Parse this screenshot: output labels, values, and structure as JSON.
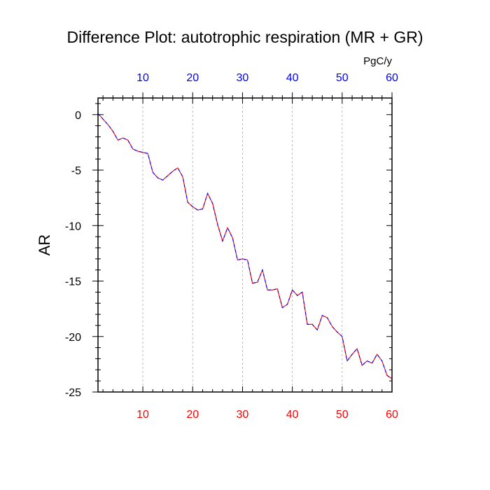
{
  "title": "Difference Plot: autotrophic respiration (MR + GR)",
  "unit_label": "PgC/y",
  "colors": {
    "top_ticks": "#0000ff",
    "bottom_ticks": "#ff0000",
    "line_a": "#ff0000",
    "line_b": "#0000ff",
    "gridline": "#aaaaaa",
    "axis": "#000000"
  },
  "chart_data": {
    "type": "line",
    "title": "Difference Plot: autotrophic respiration (MR + GR)",
    "ylabel": "AR",
    "xlabel": "",
    "xlim": [
      1,
      60
    ],
    "ylim": [
      -25,
      1.5
    ],
    "grid": "vertical dashed at major x ticks",
    "x_ticks": [
      10,
      20,
      30,
      40,
      50,
      60
    ],
    "y_ticks": [
      0,
      -5,
      -10,
      -15,
      -20,
      -25
    ],
    "x": [
      1,
      2,
      3,
      4,
      5,
      6,
      7,
      8,
      9,
      10,
      11,
      12,
      13,
      14,
      15,
      16,
      17,
      18,
      19,
      20,
      21,
      22,
      23,
      24,
      25,
      26,
      27,
      28,
      29,
      30,
      31,
      32,
      33,
      34,
      35,
      36,
      37,
      38,
      39,
      40,
      41,
      42,
      43,
      44,
      45,
      46,
      47,
      48,
      49,
      50,
      51,
      52,
      53,
      54,
      55,
      56,
      57,
      58,
      59,
      60
    ],
    "series": [
      {
        "values": [
          0.1,
          -0.4,
          -0.9,
          -1.5,
          -2.3,
          -2.1,
          -2.3,
          -3.1,
          -3.3,
          -3.4,
          -3.5,
          -5.2,
          -5.7,
          -5.9,
          -5.5,
          -5.1,
          -4.8,
          -5.6,
          -7.9,
          -8.3,
          -8.6,
          -8.5,
          -7.1,
          -8.0,
          -9.9,
          -11.4,
          -10.2,
          -11.1,
          -13.1,
          -13.0,
          -13.1,
          -15.2,
          -15.1,
          -14.0,
          -15.8,
          -15.8,
          -15.7,
          -17.4,
          -17.1,
          -15.8,
          -16.3,
          -16.0,
          -18.9,
          -18.9,
          -19.4,
          -18.1,
          -18.3,
          -19.1,
          -19.6,
          -20.0,
          -22.2,
          -21.6,
          -21.1,
          -22.6,
          -22.2,
          -22.4,
          -21.6,
          -22.2,
          -23.5,
          -23.8
        ],
        "style": "dashed red/blue"
      }
    ]
  }
}
